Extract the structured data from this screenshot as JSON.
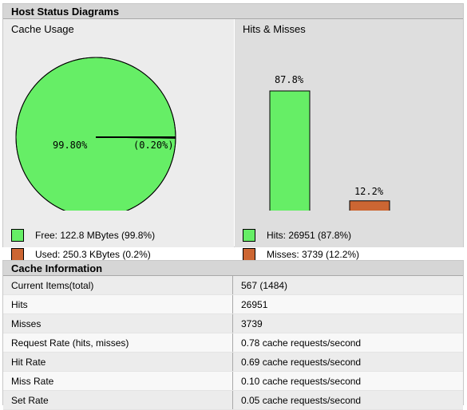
{
  "diagrams": {
    "header": "Host Status Diagrams",
    "cache_usage": {
      "title": "Cache Usage",
      "free_pct_label": "99.80%",
      "used_pct_label": "(0.20%)",
      "legend": {
        "free": "Free: 122.8 MBytes (99.8%)",
        "used": "Used: 250.3 KBytes (0.2%)"
      }
    },
    "hits_misses": {
      "title": "Hits & Misses",
      "hits_pct_label": "87.8%",
      "misses_pct_label": "12.2%",
      "legend": {
        "hits": "Hits: 26951 (87.8%)",
        "misses": "Misses: 3739 (12.2%)"
      }
    },
    "colors": {
      "free": "#66ee66",
      "used": "#cc6633",
      "hits": "#66ee66",
      "misses": "#cc6633"
    }
  },
  "chart_data": [
    {
      "type": "pie",
      "title": "Cache Usage",
      "categories": [
        "Free",
        "Used"
      ],
      "values": [
        99.8,
        0.2
      ]
    },
    {
      "type": "bar",
      "title": "Hits & Misses",
      "categories": [
        "Hits",
        "Misses"
      ],
      "values": [
        87.8,
        12.2
      ]
    }
  ],
  "info": {
    "header": "Cache Information",
    "rows": [
      {
        "label": "Current Items(total)",
        "value": "567 (1484)"
      },
      {
        "label": "Hits",
        "value": "26951"
      },
      {
        "label": "Misses",
        "value": "3739"
      },
      {
        "label": "Request Rate (hits, misses)",
        "value": "0.78 cache requests/second"
      },
      {
        "label": "Hit Rate",
        "value": "0.69 cache requests/second"
      },
      {
        "label": "Miss Rate",
        "value": "0.10 cache requests/second"
      },
      {
        "label": "Set Rate",
        "value": "0.05 cache requests/second"
      }
    ]
  }
}
